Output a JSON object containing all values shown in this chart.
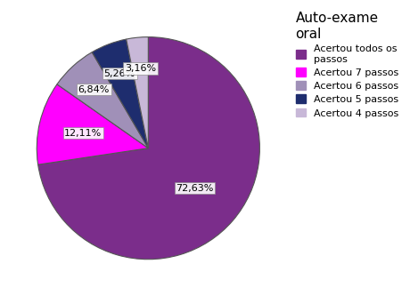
{
  "title": "Auto-exame\noral",
  "legend_labels": [
    "Acertou todos os\npassos",
    "Acertou 7 passos",
    "Acertou 6 passos",
    "Acertou 5 passos",
    "Acertou 4 passos"
  ],
  "values": [
    72.63,
    12.11,
    6.84,
    5.26,
    3.16
  ],
  "pct_labels": [
    "72,63%",
    "12,11%",
    "6,84%",
    "5,26%",
    "3,16%"
  ],
  "colors": [
    "#7B2D8B",
    "#FF00FF",
    "#A090B8",
    "#1E2D6E",
    "#C8B8D8"
  ],
  "startangle": 90,
  "counterclock": false,
  "title_fontsize": 11,
  "pct_fontsize": 8,
  "legend_fontsize": 8,
  "label_radii": [
    0.55,
    0.6,
    0.72,
    0.72,
    0.72
  ]
}
